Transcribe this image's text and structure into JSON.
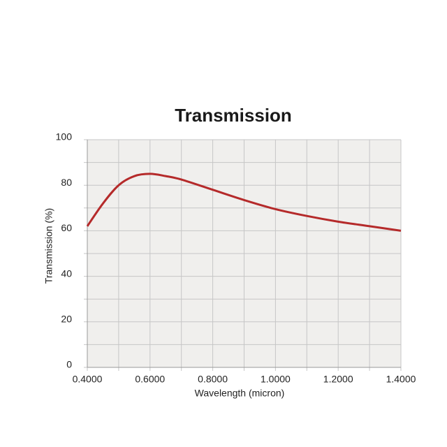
{
  "chart_data": {
    "type": "line",
    "title": "Transmission",
    "xlabel": "Wavelength (micron)",
    "ylabel": "Transmission (%)",
    "x": [
      0.4,
      0.45,
      0.5,
      0.55,
      0.6,
      0.65,
      0.7,
      0.8,
      0.9,
      1.0,
      1.1,
      1.2,
      1.3,
      1.4
    ],
    "series": [
      {
        "name": "Transmission",
        "color": "#b52a2a",
        "values": [
          62,
          72,
          80,
          84,
          85,
          84,
          82.5,
          78,
          73.5,
          69.5,
          66.5,
          64,
          62,
          60
        ]
      }
    ],
    "xlim": [
      0.4,
      1.4
    ],
    "xticks": [
      {
        "value": 0.4,
        "label": "0.4000"
      },
      {
        "value": 0.6,
        "label": "0.6000"
      },
      {
        "value": 0.8,
        "label": "0.8000"
      },
      {
        "value": 1.0,
        "label": "1.0000"
      },
      {
        "value": 1.2,
        "label": "1.2000"
      },
      {
        "value": 1.4,
        "label": "1.4000"
      }
    ],
    "minor_xticks": [
      0.5,
      0.7,
      0.9,
      1.1,
      1.3
    ],
    "ylim": [
      0,
      100
    ],
    "yticks": [
      0,
      20,
      40,
      60,
      80,
      100
    ],
    "minor_yticks": [
      10,
      30,
      50,
      70,
      90
    ],
    "grid": true
  }
}
